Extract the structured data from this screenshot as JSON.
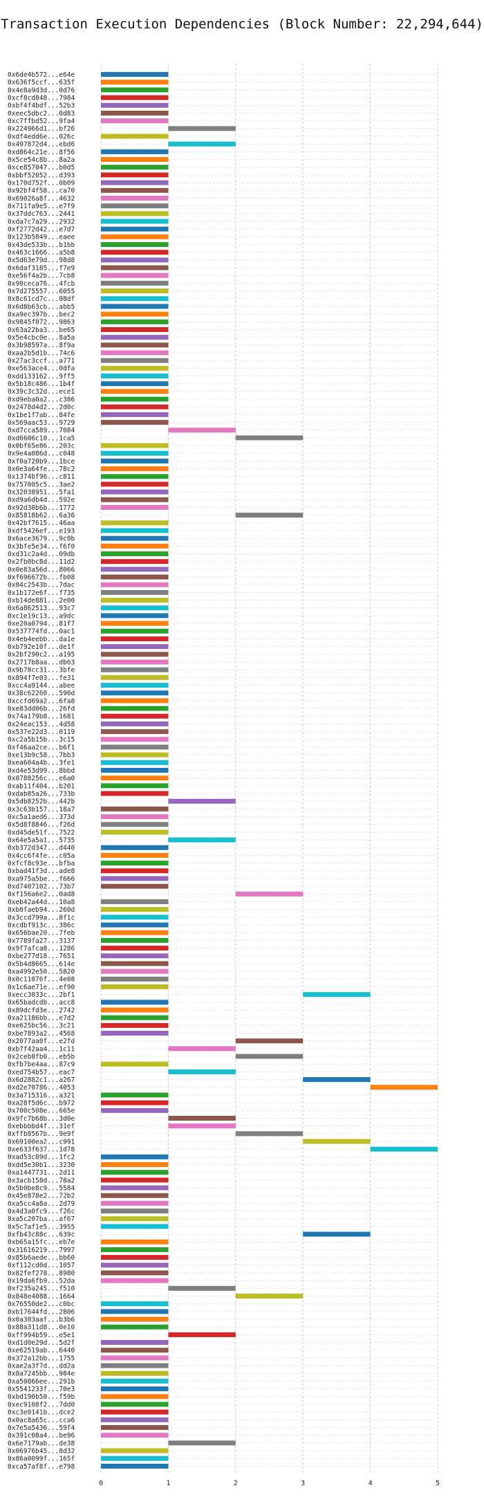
{
  "chart_data": {
    "type": "bar",
    "orientation": "horizontal-gantt",
    "title": "Transaction Execution Dependencies (Block Number: 22,294,644)",
    "xlabel": "",
    "ylabel": "",
    "xlim": [
      0,
      5
    ],
    "xticks": [
      "0",
      "1",
      "2",
      "3",
      "4",
      "5"
    ],
    "grid": true,
    "palette": [
      "#1f77b4",
      "#ff7f0e",
      "#2ca02c",
      "#d62728",
      "#9467bd",
      "#8c564b",
      "#e377c2",
      "#7f7f7f",
      "#bcbd22",
      "#17becf"
    ],
    "transactions": [
      {
        "label": "0x6de4b572...e64e",
        "start": 0,
        "end": 1
      },
      {
        "label": "0x636f5ccf...635f",
        "start": 0,
        "end": 1
      },
      {
        "label": "0x4e8a9d3d...0d76",
        "start": 0,
        "end": 1
      },
      {
        "label": "0xcf8cd848...7984",
        "start": 0,
        "end": 1
      },
      {
        "label": "0xbf4f4bdf...52b3",
        "start": 0,
        "end": 1
      },
      {
        "label": "0xeec5dbc2...0d83",
        "start": 0,
        "end": 1
      },
      {
        "label": "0xc7ffbd52...9fa4",
        "start": 0,
        "end": 1
      },
      {
        "label": "0x224966d1...bf26",
        "start": 1,
        "end": 2
      },
      {
        "label": "0xdf4edd6e...026c",
        "start": 0,
        "end": 1
      },
      {
        "label": "0x497872d4...ebd6",
        "start": 1,
        "end": 2
      },
      {
        "label": "0xd864c21e...8f56",
        "start": 0,
        "end": 1
      },
      {
        "label": "0x5ce54c8b...8a2a",
        "start": 0,
        "end": 1
      },
      {
        "label": "0xce857047...b0d5",
        "start": 0,
        "end": 1
      },
      {
        "label": "0xbbf52052...d393",
        "start": 0,
        "end": 1
      },
      {
        "label": "0x170d752f...0b09",
        "start": 0,
        "end": 1
      },
      {
        "label": "0x92bf4f58...ca70",
        "start": 0,
        "end": 1
      },
      {
        "label": "0x69026a8f...4632",
        "start": 0,
        "end": 1
      },
      {
        "label": "0x711fa9e5...e7f9",
        "start": 0,
        "end": 1
      },
      {
        "label": "0x37ddc763...2441",
        "start": 0,
        "end": 1
      },
      {
        "label": "0xda7c7a29...2932",
        "start": 0,
        "end": 1
      },
      {
        "label": "0xf2772d42...e7d7",
        "start": 0,
        "end": 1
      },
      {
        "label": "0x123b5849...eaee",
        "start": 0,
        "end": 1
      },
      {
        "label": "0x43de533b...b1bb",
        "start": 0,
        "end": 1
      },
      {
        "label": "0x463c1666...a5b8",
        "start": 0,
        "end": 1
      },
      {
        "label": "0x5d63e79d...98d8",
        "start": 0,
        "end": 1
      },
      {
        "label": "0x6daf3185...f7e9",
        "start": 0,
        "end": 1
      },
      {
        "label": "0xe56f4a2b...7cb8",
        "start": 0,
        "end": 1
      },
      {
        "label": "0x90ceca76...4fcb",
        "start": 0,
        "end": 1
      },
      {
        "label": "0x7d275557...6055",
        "start": 0,
        "end": 1
      },
      {
        "label": "0x8c61cd7c...08df",
        "start": 0,
        "end": 1
      },
      {
        "label": "0x6d8b63cb...abb5",
        "start": 0,
        "end": 1
      },
      {
        "label": "0xa9ec397b...bec2",
        "start": 0,
        "end": 1
      },
      {
        "label": "0x9845f072...9863",
        "start": 0,
        "end": 1
      },
      {
        "label": "0x63a22ba3...be65",
        "start": 0,
        "end": 1
      },
      {
        "label": "0x5e4cbc0e...8a5a",
        "start": 0,
        "end": 1
      },
      {
        "label": "0x3b98597a...8f9a",
        "start": 0,
        "end": 1
      },
      {
        "label": "0xaa2b5d1b...74c6",
        "start": 0,
        "end": 1
      },
      {
        "label": "0x27ac3ccf...a771",
        "start": 0,
        "end": 1
      },
      {
        "label": "0xe563ace4...0dfa",
        "start": 0,
        "end": 1
      },
      {
        "label": "0xdd133162...9ff5",
        "start": 0,
        "end": 1
      },
      {
        "label": "0x5b18c486...1b4f",
        "start": 0,
        "end": 1
      },
      {
        "label": "0x39c3c32d...ece1",
        "start": 0,
        "end": 1
      },
      {
        "label": "0xd9eba0a2...c386",
        "start": 0,
        "end": 1
      },
      {
        "label": "0x2478d4d2...2d0c",
        "start": 0,
        "end": 1
      },
      {
        "label": "0x1be1f7ab...84fe",
        "start": 0,
        "end": 1
      },
      {
        "label": "0x569aac53...9729",
        "start": 0,
        "end": 1
      },
      {
        "label": "0xd7cca589...7084",
        "start": 1,
        "end": 2
      },
      {
        "label": "0xd6606c10...1ca5",
        "start": 2,
        "end": 3
      },
      {
        "label": "0x0bf65e86...203c",
        "start": 0,
        "end": 1
      },
      {
        "label": "0x9e4a086d...c048",
        "start": 0,
        "end": 1
      },
      {
        "label": "0xf0a720b9...1bce",
        "start": 0,
        "end": 1
      },
      {
        "label": "0x0e3a64fe...78c2",
        "start": 0,
        "end": 1
      },
      {
        "label": "0x1374bf96...c811",
        "start": 0,
        "end": 1
      },
      {
        "label": "0x757005c5...3ae2",
        "start": 0,
        "end": 1
      },
      {
        "label": "0x32038951...5fa1",
        "start": 0,
        "end": 1
      },
      {
        "label": "0xd9a6db4d...592e",
        "start": 0,
        "end": 1
      },
      {
        "label": "0x92d30b6b...1772",
        "start": 0,
        "end": 1
      },
      {
        "label": "0x85818b62...6a36",
        "start": 2,
        "end": 3
      },
      {
        "label": "0x42bf7615...46aa",
        "start": 0,
        "end": 1
      },
      {
        "label": "0xdf5426ef...e193",
        "start": 0,
        "end": 1
      },
      {
        "label": "0x6ace3679...9c0b",
        "start": 0,
        "end": 1
      },
      {
        "label": "0x3bfe5e34...f6f0",
        "start": 0,
        "end": 1
      },
      {
        "label": "0xd31c2a4d...09db",
        "start": 0,
        "end": 1
      },
      {
        "label": "0x2fb0bc8d...11d2",
        "start": 0,
        "end": 1
      },
      {
        "label": "0x0e83a56d...8066",
        "start": 0,
        "end": 1
      },
      {
        "label": "0xf696672b...fb08",
        "start": 0,
        "end": 1
      },
      {
        "label": "0x04c2543b...7dac",
        "start": 0,
        "end": 1
      },
      {
        "label": "0x1b172e6f...f735",
        "start": 0,
        "end": 1
      },
      {
        "label": "0xb14de881...2e00",
        "start": 0,
        "end": 1
      },
      {
        "label": "0x6a862513...93c7",
        "start": 0,
        "end": 1
      },
      {
        "label": "0xc1e19c13...a9dc",
        "start": 0,
        "end": 1
      },
      {
        "label": "0xe20a0794...81f7",
        "start": 0,
        "end": 1
      },
      {
        "label": "0x537774fd...0ac1",
        "start": 0,
        "end": 1
      },
      {
        "label": "0x4eb4eebb...da1e",
        "start": 0,
        "end": 1
      },
      {
        "label": "0xb792e10f...de1f",
        "start": 0,
        "end": 1
      },
      {
        "label": "0x2bf290c2...a195",
        "start": 0,
        "end": 1
      },
      {
        "label": "0x2717b8aa...db63",
        "start": 0,
        "end": 1
      },
      {
        "label": "0x9b78cc31...3bfe",
        "start": 0,
        "end": 1
      },
      {
        "label": "0x894f7e03...fe31",
        "start": 0,
        "end": 1
      },
      {
        "label": "0xcc4a9144...abee",
        "start": 0,
        "end": 1
      },
      {
        "label": "0x38c62260...590d",
        "start": 0,
        "end": 1
      },
      {
        "label": "0xccfd69a2...6fa8",
        "start": 0,
        "end": 1
      },
      {
        "label": "0xe83dd06b...26fd",
        "start": 0,
        "end": 1
      },
      {
        "label": "0x74a179b8...1681",
        "start": 0,
        "end": 1
      },
      {
        "label": "0x24eac153...4d58",
        "start": 0,
        "end": 1
      },
      {
        "label": "0x537e22d3...0119",
        "start": 0,
        "end": 1
      },
      {
        "label": "0xc2a5b15b...3c15",
        "start": 0,
        "end": 1
      },
      {
        "label": "0xf46aa2ce...b6f1",
        "start": 0,
        "end": 1
      },
      {
        "label": "0xe13b9c58...7bb3",
        "start": 0,
        "end": 1
      },
      {
        "label": "0xea604a4b...3fe1",
        "start": 0,
        "end": 1
      },
      {
        "label": "0xd4e53d99...8bbd",
        "start": 0,
        "end": 1
      },
      {
        "label": "0x0788256c...e6a0",
        "start": 0,
        "end": 1
      },
      {
        "label": "0xab11f404...b201",
        "start": 0,
        "end": 1
      },
      {
        "label": "0xdab85a26...733b",
        "start": 0,
        "end": 1
      },
      {
        "label": "0x5db8252b...442b",
        "start": 1,
        "end": 2
      },
      {
        "label": "0x3c63b157...18a7",
        "start": 0,
        "end": 1
      },
      {
        "label": "0xc5a1aed6...373d",
        "start": 0,
        "end": 1
      },
      {
        "label": "0x5d8f8846...f26d",
        "start": 0,
        "end": 1
      },
      {
        "label": "0xd45de51f...7522",
        "start": 0,
        "end": 1
      },
      {
        "label": "0x64e5a5a1...5735",
        "start": 1,
        "end": 2
      },
      {
        "label": "0xb372d347...d440",
        "start": 0,
        "end": 1
      },
      {
        "label": "0x4cc6f4fe...c05a",
        "start": 0,
        "end": 1
      },
      {
        "label": "0xfcf8c93e...bfba",
        "start": 0,
        "end": 1
      },
      {
        "label": "0xbad41f3d...ade8",
        "start": 0,
        "end": 1
      },
      {
        "label": "0xa975a5be...f666",
        "start": 0,
        "end": 1
      },
      {
        "label": "0xd7407102...73b7",
        "start": 0,
        "end": 1
      },
      {
        "label": "0xf156a6e2...0ad8",
        "start": 2,
        "end": 3
      },
      {
        "label": "0xeb42a44d...10a8",
        "start": 0,
        "end": 1
      },
      {
        "label": "0xb0faeb94...260d",
        "start": 0,
        "end": 1
      },
      {
        "label": "0x3ccd799a...8f1c",
        "start": 0,
        "end": 1
      },
      {
        "label": "0xcdbf913c...386c",
        "start": 0,
        "end": 1
      },
      {
        "label": "0x656bae20...7feb",
        "start": 0,
        "end": 1
      },
      {
        "label": "0x7789fa27...3137",
        "start": 0,
        "end": 1
      },
      {
        "label": "0x9f7afca8...1286",
        "start": 0,
        "end": 1
      },
      {
        "label": "0xbe277d18...7651",
        "start": 0,
        "end": 1
      },
      {
        "label": "0x5b4d8665...614e",
        "start": 0,
        "end": 1
      },
      {
        "label": "0xa4992e50...5820",
        "start": 0,
        "end": 1
      },
      {
        "label": "0x0c11076f...4e08",
        "start": 0,
        "end": 1
      },
      {
        "label": "0x1c6ae71e...ef90",
        "start": 0,
        "end": 1
      },
      {
        "label": "0xecc3033c...2bf1",
        "start": 3,
        "end": 4
      },
      {
        "label": "0x65badcdb...acc8",
        "start": 0,
        "end": 1
      },
      {
        "label": "0x89dcfd3e...2742",
        "start": 0,
        "end": 1
      },
      {
        "label": "0xa21186bb...e7d2",
        "start": 0,
        "end": 1
      },
      {
        "label": "0xe625bc56...3c21",
        "start": 0,
        "end": 1
      },
      {
        "label": "0xbe7893a2...4568",
        "start": 0,
        "end": 1
      },
      {
        "label": "0x2077aa0f...e2fd",
        "start": 2,
        "end": 3
      },
      {
        "label": "0xb7f42aa4...1c11",
        "start": 1,
        "end": 2
      },
      {
        "label": "0x2ceb8fb0...eb5b",
        "start": 2,
        "end": 3
      },
      {
        "label": "0xfb7be4aa...87c9",
        "start": 0,
        "end": 1
      },
      {
        "label": "0xed754b57...eac7",
        "start": 1,
        "end": 2
      },
      {
        "label": "0x6d2882c1...a267",
        "start": 3,
        "end": 4
      },
      {
        "label": "0xd2e70786...4053",
        "start": 4,
        "end": 5
      },
      {
        "label": "0x3a715316...a321",
        "start": 0,
        "end": 1
      },
      {
        "label": "0xa28f5d6c...b972",
        "start": 0,
        "end": 1
      },
      {
        "label": "0x700c508e...665e",
        "start": 0,
        "end": 1
      },
      {
        "label": "0x9fc7b68b...3d0e",
        "start": 1,
        "end": 2
      },
      {
        "label": "0xebbbbd4f...31ef",
        "start": 1,
        "end": 2
      },
      {
        "label": "0xffb8567b...9e9f",
        "start": 2,
        "end": 3
      },
      {
        "label": "0x69100ea2...c991",
        "start": 3,
        "end": 4
      },
      {
        "label": "0xe633f637...1d78",
        "start": 4,
        "end": 5
      },
      {
        "label": "0xad53c89d...1fc2",
        "start": 0,
        "end": 1
      },
      {
        "label": "0xdd5e30b1...3230",
        "start": 0,
        "end": 1
      },
      {
        "label": "0xa1447731...2d11",
        "start": 0,
        "end": 1
      },
      {
        "label": "0x3acb158d...78a2",
        "start": 0,
        "end": 1
      },
      {
        "label": "0x5b0be8c9...5584",
        "start": 0,
        "end": 1
      },
      {
        "label": "0x45e878e2...72b2",
        "start": 0,
        "end": 1
      },
      {
        "label": "0xa5cc4a8a...2d79",
        "start": 0,
        "end": 1
      },
      {
        "label": "0x4d3a0fc9...f26c",
        "start": 0,
        "end": 1
      },
      {
        "label": "0xa5c207ba...af67",
        "start": 0,
        "end": 1
      },
      {
        "label": "0x5c7af1e5...3955",
        "start": 0,
        "end": 1
      },
      {
        "label": "0xfb43c88c...639c",
        "start": 3,
        "end": 4
      },
      {
        "label": "0xb65a15fc...eb7e",
        "start": 0,
        "end": 1
      },
      {
        "label": "0x31616219...7997",
        "start": 0,
        "end": 1
      },
      {
        "label": "0x85b6aede...bb60",
        "start": 0,
        "end": 1
      },
      {
        "label": "0xf112cd0d...1057",
        "start": 0,
        "end": 1
      },
      {
        "label": "0x82fef278...8980",
        "start": 0,
        "end": 1
      },
      {
        "label": "0x19da6fb9...52da",
        "start": 0,
        "end": 1
      },
      {
        "label": "0xf235a245...f510",
        "start": 1,
        "end": 2
      },
      {
        "label": "0x848e4088...1664",
        "start": 2,
        "end": 3
      },
      {
        "label": "0x76550de2...c0bc",
        "start": 0,
        "end": 1
      },
      {
        "label": "0xb17644fd...2806",
        "start": 0,
        "end": 1
      },
      {
        "label": "0x0a303aaf...b3b6",
        "start": 0,
        "end": 1
      },
      {
        "label": "0x88a311d8...0e10",
        "start": 0,
        "end": 1
      },
      {
        "label": "0xff994b59...e5e1",
        "start": 1,
        "end": 2
      },
      {
        "label": "0xd1d0e29d...5d2f",
        "start": 0,
        "end": 1
      },
      {
        "label": "0xe62519ab...6440",
        "start": 0,
        "end": 1
      },
      {
        "label": "0x372a12bb...1755",
        "start": 0,
        "end": 1
      },
      {
        "label": "0xae2a3f7d...dd2a",
        "start": 0,
        "end": 1
      },
      {
        "label": "0x8a7245bb...984e",
        "start": 0,
        "end": 1
      },
      {
        "label": "0xa50866ee...291b",
        "start": 0,
        "end": 1
      },
      {
        "label": "0x5541233f...70e3",
        "start": 0,
        "end": 1
      },
      {
        "label": "0xbd190b50...f59b",
        "start": 0,
        "end": 1
      },
      {
        "label": "0xec9108f2...7dd0",
        "start": 0,
        "end": 1
      },
      {
        "label": "0xc3e0141b...dce2",
        "start": 0,
        "end": 1
      },
      {
        "label": "0x0ac8a65c...cca6",
        "start": 0,
        "end": 1
      },
      {
        "label": "0x7e5a5436...59f4",
        "start": 0,
        "end": 1
      },
      {
        "label": "0x391c08a4...be96",
        "start": 0,
        "end": 1
      },
      {
        "label": "0x6e7179ab...de38",
        "start": 1,
        "end": 2
      },
      {
        "label": "0x06976b45...8d32",
        "start": 0,
        "end": 1
      },
      {
        "label": "0x86a0099f...165f",
        "start": 0,
        "end": 1
      },
      {
        "label": "0xca57af8f...e798",
        "start": 0,
        "end": 1
      }
    ]
  }
}
